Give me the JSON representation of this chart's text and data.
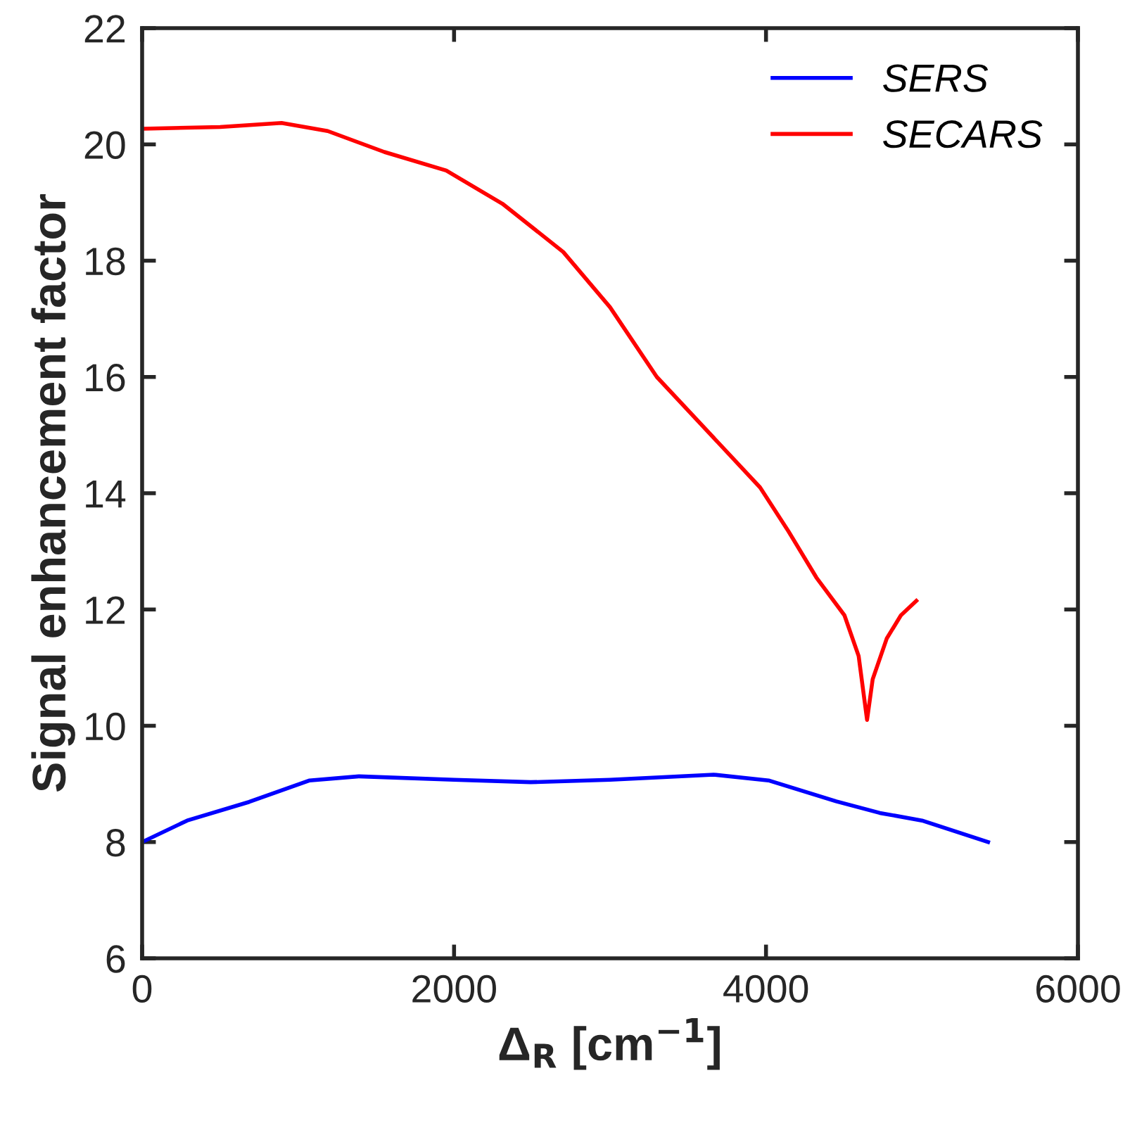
{
  "chart_data": {
    "type": "line",
    "xlabel": "Δ$_{R}$ [cm$^{−1}$]",
    "ylabel": "Signal enhancement factor",
    "xlim": [
      0,
      6000
    ],
    "xticks": [
      0,
      2000,
      4000,
      6000
    ],
    "ylim": [
      6,
      22
    ],
    "yticks": [
      6,
      8,
      10,
      12,
      14,
      16,
      18,
      20,
      22
    ],
    "grid": false,
    "legend": "top right",
    "line_style": "solid",
    "marker": "none",
    "series": [
      {
        "name": "SERS",
        "color": "#0000ff",
        "x": [
          0,
          289,
          686,
          1074,
          1390,
          2000,
          2490,
          3000,
          3664,
          4016,
          4450,
          4730,
          5000,
          5424
        ],
        "values": [
          8.0,
          8.37,
          8.69,
          9.06,
          9.13,
          9.07,
          9.03,
          9.07,
          9.16,
          9.06,
          8.7,
          8.5,
          8.37,
          8.0
        ]
      },
      {
        "name": "SECARS",
        "color": "#ff0000",
        "x": [
          0,
          500,
          894,
          1190,
          1553,
          1950,
          2310,
          2700,
          3000,
          3300,
          3962,
          4143,
          4323,
          4503,
          4594,
          4648,
          4684,
          4774,
          4865,
          4964
        ],
        "values": [
          20.27,
          20.3,
          20.37,
          20.23,
          19.87,
          19.55,
          18.98,
          18.15,
          17.2,
          16.0,
          14.1,
          13.35,
          12.55,
          11.9,
          11.2,
          10.1,
          10.8,
          11.5,
          11.9,
          12.15
        ]
      }
    ]
  }
}
